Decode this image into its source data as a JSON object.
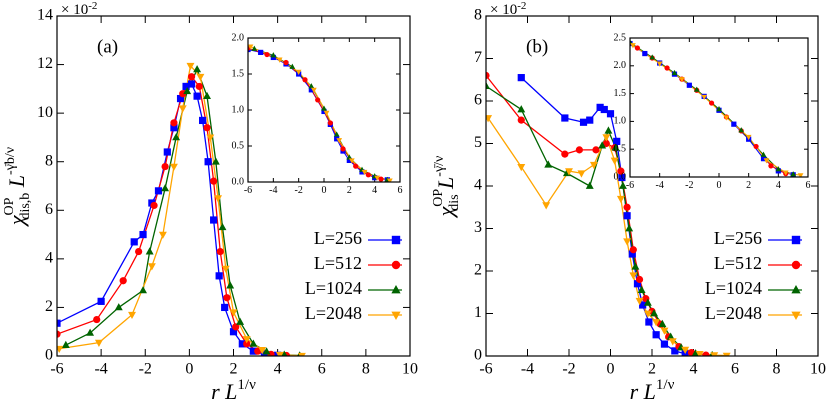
{
  "chart_data": [
    {
      "type": "line",
      "panel_label": "(a)",
      "multiplier": {
        "base": "× 10",
        "exp": "-2"
      },
      "xlabel": {
        "text": "r L",
        "sup": "1/ν"
      },
      "ylabel": {
        "base": "χ",
        "sup": "OP",
        "sub": "dis,b",
        "factor": " L",
        "factor_sup": "-γ̄b/ν"
      },
      "xlim": [
        -6,
        10
      ],
      "xticks": [
        -6,
        -4,
        -2,
        0,
        2,
        4,
        6,
        8,
        10
      ],
      "ylim": [
        0,
        14
      ],
      "yticks": [
        0,
        2,
        4,
        6,
        8,
        10,
        12,
        14
      ],
      "legend": "right",
      "series": [
        {
          "name": "L=256",
          "color": "#0000ff",
          "marker": "square",
          "x": [
            -6,
            -4,
            -2.5,
            -2.1,
            -1.7,
            -1.4,
            -1.0,
            -0.7,
            -0.4,
            -0.15,
            0.1,
            0.35,
            0.6,
            0.85,
            1.1,
            1.35,
            1.6,
            2.0,
            2.4,
            2.9,
            3.4,
            4.0
          ],
          "values": [
            1.35,
            2.25,
            4.7,
            5.0,
            6.3,
            6.8,
            8.4,
            9.4,
            10.6,
            11.1,
            11.2,
            10.7,
            9.7,
            8.0,
            5.6,
            3.3,
            2.0,
            1.0,
            0.5,
            0.2,
            0.08,
            0.03
          ]
        },
        {
          "name": "L=512",
          "color": "#ff0000",
          "marker": "circle",
          "x": [
            -6,
            -4.2,
            -3,
            -2.3,
            -1.6,
            -1.1,
            -0.7,
            -0.3,
            0.1,
            0.45,
            0.8,
            1.1,
            1.4,
            1.7,
            2.1,
            2.6,
            3.1,
            3.7,
            4.4
          ],
          "values": [
            0.9,
            1.5,
            3.1,
            4.3,
            6.2,
            7.8,
            9.6,
            10.8,
            11.5,
            11.1,
            9.4,
            7.2,
            4.3,
            2.4,
            1.2,
            0.5,
            0.2,
            0.07,
            0.02
          ]
        },
        {
          "name": "L=1024",
          "color": "#006400",
          "marker": "triangle-up",
          "x": [
            -5.6,
            -4.5,
            -3.2,
            -2.1,
            -1.8,
            -1.1,
            -0.6,
            -0.1,
            0.35,
            0.8,
            1.2,
            1.5,
            1.85,
            2.3,
            2.9,
            3.5,
            4.3,
            5.0
          ],
          "values": [
            0.45,
            0.95,
            2.0,
            2.7,
            4.3,
            6.9,
            9.0,
            10.9,
            11.8,
            10.7,
            8.0,
            5.3,
            2.9,
            1.4,
            0.5,
            0.18,
            0.05,
            0.02
          ]
        },
        {
          "name": "L=2048",
          "color": "#ffa500",
          "marker": "triangle-down",
          "x": [
            -5.9,
            -4.1,
            -2.6,
            -1.7,
            -1.2,
            -0.7,
            -0.3,
            0.05,
            0.5,
            0.95,
            1.3,
            1.65,
            2.0,
            2.6,
            3.3,
            4.1,
            5.1
          ],
          "values": [
            0.3,
            0.55,
            1.7,
            3.7,
            5.0,
            7.8,
            10.2,
            11.95,
            11.5,
            9.0,
            6.5,
            3.6,
            1.8,
            0.7,
            0.25,
            0.05,
            0.01
          ]
        }
      ]
    },
    {
      "type": "line",
      "xlim": [
        -6,
        6
      ],
      "xticks": [
        -6,
        -4,
        -2,
        0,
        2,
        4,
        6
      ],
      "ylim": [
        0,
        2
      ],
      "yticks": [
        {
          "value": 0,
          "label": "0.0"
        },
        0.5,
        {
          "value": 1,
          "label": "1.0"
        },
        1.5,
        {
          "value": 2,
          "label": "2.0"
        }
      ],
      "series": [
        {
          "color": "#0000ff",
          "marker": "square",
          "x": [
            -6,
            -5,
            -4,
            -3,
            -2,
            -1,
            0,
            0.5,
            1,
            1.5,
            2,
            3,
            4,
            5
          ],
          "values": [
            1.84,
            1.8,
            1.73,
            1.64,
            1.5,
            1.28,
            0.98,
            0.8,
            0.6,
            0.43,
            0.3,
            0.14,
            0.06,
            0.03
          ]
        },
        {
          "color": "#ff0000",
          "marker": "circle",
          "x": [
            -6,
            -4.5,
            -3,
            -1.5,
            -0.5,
            0.5,
            1.5,
            2.5,
            3.5,
            4.5
          ],
          "values": [
            1.86,
            1.77,
            1.66,
            1.42,
            1.14,
            0.82,
            0.46,
            0.22,
            0.1,
            0.04
          ]
        },
        {
          "color": "#006400",
          "marker": "triangle-up",
          "x": [
            -5.5,
            -4,
            -2.5,
            -1,
            0,
            1,
            2,
            3,
            4,
            5
          ],
          "values": [
            1.85,
            1.76,
            1.6,
            1.33,
            1.02,
            0.66,
            0.34,
            0.17,
            0.08,
            0.03
          ]
        },
        {
          "color": "#ffa500",
          "marker": "triangle-down",
          "x": [
            -5.8,
            -3.5,
            -2,
            -0.8,
            0.2,
            1.2,
            2.2,
            3.2,
            4.2,
            5.2
          ],
          "values": [
            1.88,
            1.7,
            1.53,
            1.28,
            0.96,
            0.58,
            0.3,
            0.14,
            0.06,
            0.02
          ]
        }
      ]
    },
    {
      "type": "line",
      "panel_label": "(b)",
      "multiplier": {
        "base": "× 10",
        "exp": "-2"
      },
      "xlabel": {
        "text": "r L",
        "sup": "1/ν"
      },
      "ylabel": {
        "base": "χ",
        "sup": "OP",
        "sub": "dis",
        "factor": " L",
        "factor_sup": "-γ̄/ν"
      },
      "xlim": [
        -6,
        10
      ],
      "xticks": [
        -6,
        -4,
        -2,
        0,
        2,
        4,
        6,
        8,
        10
      ],
      "ylim": [
        0,
        8
      ],
      "yticks": [
        0,
        1,
        2,
        3,
        4,
        5,
        6,
        7,
        8
      ],
      "legend": "right",
      "series": [
        {
          "name": "L=256",
          "color": "#0000ff",
          "marker": "square",
          "x": [
            -4.3,
            -2.2,
            -1.3,
            -1.0,
            -0.5,
            -0.3,
            0.0,
            0.3,
            0.55,
            0.8,
            1.05,
            1.3,
            1.55,
            1.85,
            2.2,
            2.6,
            3.1,
            3.6,
            4.2
          ],
          "values": [
            6.55,
            5.6,
            5.5,
            5.55,
            5.85,
            5.8,
            5.7,
            5.05,
            4.2,
            3.3,
            2.4,
            1.7,
            1.2,
            0.8,
            0.5,
            0.28,
            0.12,
            0.05,
            0.02
          ]
        },
        {
          "name": "L=512",
          "color": "#ff0000",
          "marker": "circle",
          "x": [
            -6,
            -4.3,
            -2.2,
            -1.5,
            -0.7,
            -0.2,
            0.2,
            0.5,
            0.8,
            1.1,
            1.4,
            1.7,
            2.0,
            2.4,
            2.8,
            3.3,
            3.9,
            4.6
          ],
          "values": [
            6.6,
            5.55,
            4.75,
            4.85,
            4.85,
            5.0,
            4.9,
            4.35,
            3.5,
            2.5,
            1.8,
            1.35,
            1.05,
            0.75,
            0.45,
            0.22,
            0.08,
            0.02
          ]
        },
        {
          "name": "L=1024",
          "color": "#006400",
          "marker": "triangle-up",
          "x": [
            -6,
            -4.3,
            -3.0,
            -2.1,
            -1.0,
            -0.4,
            -0.1,
            0.25,
            0.6,
            0.9,
            1.2,
            1.5,
            1.8,
            2.1,
            2.5,
            2.9,
            3.4,
            4.1,
            4.9
          ],
          "values": [
            6.35,
            5.8,
            4.5,
            4.3,
            4.0,
            4.95,
            5.3,
            4.9,
            4.0,
            3.0,
            2.1,
            1.55,
            1.25,
            1.0,
            0.75,
            0.45,
            0.2,
            0.06,
            0.02
          ]
        },
        {
          "name": "L=2048",
          "color": "#ffa500",
          "marker": "triangle-down",
          "x": [
            -5.9,
            -4.3,
            -3.1,
            -2.0,
            -1.4,
            -0.8,
            -0.2,
            0.2,
            0.5,
            0.8,
            1.1,
            1.4,
            1.8,
            2.2,
            2.6,
            3.0,
            3.6,
            4.3,
            5.0,
            5.6
          ],
          "values": [
            5.6,
            4.45,
            3.55,
            4.35,
            4.3,
            4.5,
            5.15,
            4.6,
            3.7,
            2.7,
            1.9,
            1.3,
            1.0,
            0.8,
            0.6,
            0.35,
            0.15,
            0.05,
            0.02,
            0.01
          ]
        }
      ]
    },
    {
      "type": "line",
      "xlim": [
        -6,
        6
      ],
      "xticks": [
        -6,
        -4,
        -2,
        0,
        2,
        4,
        6
      ],
      "ylim": [
        0,
        2.5
      ],
      "yticks": [
        {
          "value": 0,
          "label": "0.0"
        },
        0.5,
        {
          "value": 1,
          "label": "1.0"
        },
        1.5,
        {
          "value": 2,
          "label": "2.0"
        },
        2.5
      ],
      "series": [
        {
          "color": "#0000ff",
          "marker": "square",
          "x": [
            -6,
            -5,
            -4,
            -3,
            -2,
            -1,
            0,
            1,
            2,
            3,
            4,
            5
          ],
          "values": [
            2.4,
            2.22,
            2.05,
            1.85,
            1.65,
            1.45,
            1.2,
            0.95,
            0.68,
            0.33,
            0.11,
            0.04
          ]
        },
        {
          "color": "#ff0000",
          "marker": "circle",
          "x": [
            -5.5,
            -4.5,
            -3.5,
            -2.5,
            -1.5,
            -0.5,
            0.5,
            1.5,
            2.5,
            3.5,
            4.5
          ],
          "values": [
            2.32,
            2.14,
            1.96,
            1.76,
            1.56,
            1.33,
            1.08,
            0.83,
            0.55,
            0.2,
            0.06
          ]
        },
        {
          "color": "#006400",
          "marker": "triangle-up",
          "x": [
            -6,
            -4.5,
            -3,
            -1.5,
            0,
            1.5,
            3,
            4,
            5
          ],
          "values": [
            2.42,
            2.15,
            1.87,
            1.57,
            1.22,
            0.84,
            0.4,
            0.14,
            0.05
          ]
        },
        {
          "color": "#ffa500",
          "marker": "triangle-down",
          "x": [
            -5.8,
            -4,
            -2.5,
            -1,
            0.5,
            2,
            3.2,
            4.5,
            5.5
          ],
          "values": [
            2.37,
            2.04,
            1.76,
            1.44,
            1.07,
            0.72,
            0.3,
            0.08,
            0.03
          ]
        }
      ]
    }
  ]
}
